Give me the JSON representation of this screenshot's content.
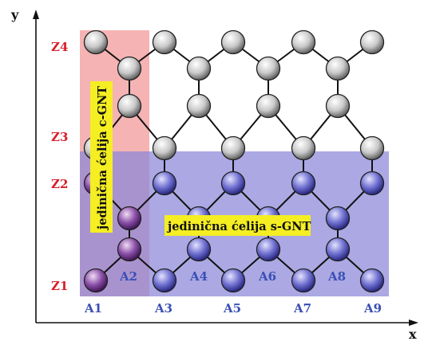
{
  "axes": {
    "x_label": "x",
    "y_label": "y"
  },
  "z_labels": [
    "Z1",
    "Z2",
    "Z3",
    "Z4"
  ],
  "a_labels": [
    "A1",
    "A2",
    "A3",
    "A4",
    "A5",
    "A6",
    "A7",
    "A8",
    "A9"
  ],
  "cell_labels": {
    "c_gnt": "jedinična ćelija c-GNT",
    "s_gnt": "jedinična ćelija s-GNT"
  },
  "colors": {
    "z_label": "#d81f2a",
    "a_label": "#3a4fb5",
    "c_cell_fill": "#f29a9a",
    "s_cell_fill": "#8b86d8",
    "label_box": "#f4ee23",
    "atom_gray": "#8a8a8a",
    "atom_blue": "#4a4aa8",
    "atom_purple": "#5a2a7a",
    "bond": "#111111"
  }
}
